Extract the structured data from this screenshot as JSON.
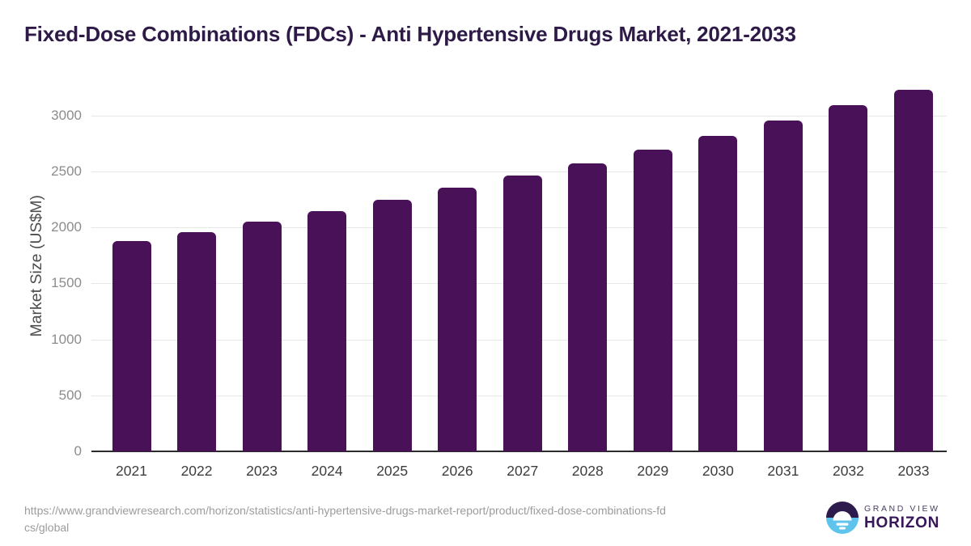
{
  "title": "Fixed-Dose Combinations (FDCs) - Anti Hypertensive Drugs Market, 2021-2033",
  "chart_data": {
    "type": "bar",
    "title": "Fixed-Dose Combinations (FDCs) - Anti Hypertensive Drugs Market, 2021-2033",
    "categories": [
      "2021",
      "2022",
      "2023",
      "2024",
      "2025",
      "2026",
      "2027",
      "2028",
      "2029",
      "2030",
      "2031",
      "2032",
      "2033"
    ],
    "values": [
      1878,
      1961,
      2055,
      2150,
      2248,
      2354,
      2461,
      2574,
      2696,
      2822,
      2956,
      3090,
      3230
    ],
    "xlabel": "",
    "ylabel": "Market Size (US$M)",
    "ylim": [
      0,
      3310
    ],
    "yticks": [
      0,
      500,
      1000,
      1500,
      2000,
      2500,
      3000
    ],
    "grid": "horizontal-only",
    "legend": "none",
    "bar_color": "#481158"
  },
  "colors": {
    "title_text": "#2e1a47",
    "bar": "#481158",
    "gridline": "#e7e7e7",
    "axis_line": "#2b2b2b",
    "tick_text": "#8c8c8c",
    "category_text": "#3d3d3d",
    "url_text": "#9c9c9c",
    "logo_dark": "#2d1b4e",
    "logo_cyan": "#5ec4ec"
  },
  "footer": {
    "source_url_lines": [
      "https://www.grandviewresearch.com/horizon/statistics/anti-hypertensive-drugs-market-report/product/fixed-dose-combinations-fd",
      "cs/global"
    ],
    "logo": {
      "top_text": "GRAND VIEW",
      "bottom_text": "HORIZON"
    }
  }
}
